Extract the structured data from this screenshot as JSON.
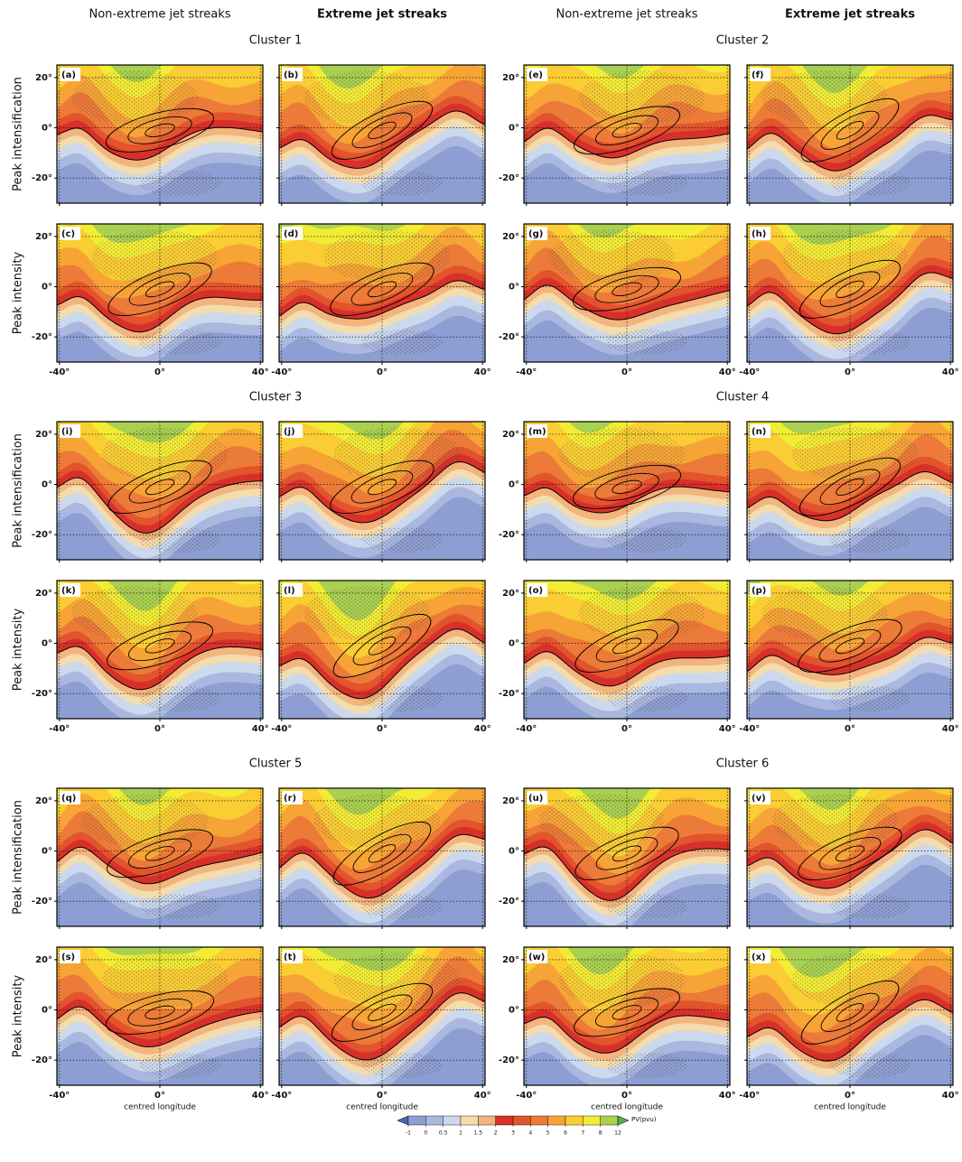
{
  "column_headers": [
    "Non-extreme jet streaks",
    "Extreme jet streaks"
  ],
  "row_labels": [
    "Peak intensification",
    "Peak intensity"
  ],
  "clusters": [
    {
      "title": "Cluster 1",
      "panels": [
        "(a)",
        "(b)",
        "(c)",
        "(d)"
      ]
    },
    {
      "title": "Cluster 2",
      "panels": [
        "(e)",
        "(f)",
        "(g)",
        "(h)"
      ]
    },
    {
      "title": "Cluster 3",
      "panels": [
        "(i)",
        "(j)",
        "(k)",
        "(l)"
      ]
    },
    {
      "title": "Cluster 4",
      "panels": [
        "(m)",
        "(n)",
        "(o)",
        "(p)"
      ]
    },
    {
      "title": "Cluster 5",
      "panels": [
        "(q)",
        "(r)",
        "(s)",
        "(t)"
      ]
    },
    {
      "title": "Cluster 6",
      "panels": [
        "(u)",
        "(v)",
        "(w)",
        "(x)"
      ]
    }
  ],
  "axes": {
    "xlim": [
      -41,
      41
    ],
    "ylim": [
      -30,
      25
    ],
    "xticks": [
      {
        "value": -40,
        "label": "-40°"
      },
      {
        "value": 0,
        "label": "0°"
      },
      {
        "value": 40,
        "label": "40°"
      }
    ],
    "yticks": [
      {
        "value": 20,
        "label": "20°"
      },
      {
        "value": 0,
        "label": "0°"
      },
      {
        "value": -20,
        "label": "-20°"
      }
    ],
    "xlabel": "centred longitude",
    "grid": true
  },
  "colorbar": {
    "label": "PV(pvu)",
    "ticks": [
      -1,
      0,
      0.5,
      1,
      1.5,
      2,
      3,
      4,
      5,
      6,
      7,
      8,
      12
    ],
    "colors": [
      "#4f64ad",
      "#8d9ed2",
      "#aab8e0",
      "#ccd8ec",
      "#f3dcae",
      "#f3b47d",
      "#d7302a",
      "#e2542c",
      "#ec7a38",
      "#f6a436",
      "#f9cd33",
      "#f2ec35",
      "#a9d050",
      "#56ac4a"
    ]
  }
}
